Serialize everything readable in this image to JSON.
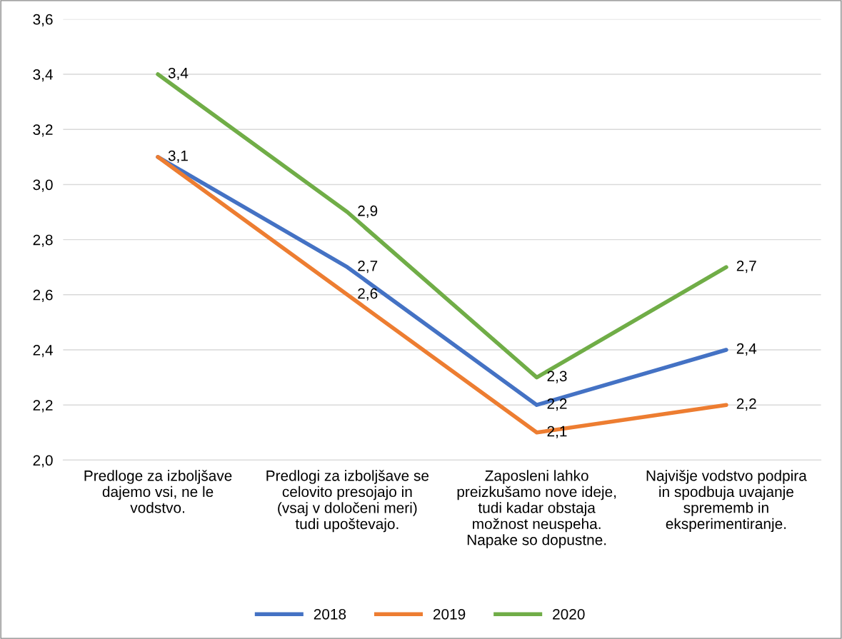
{
  "chart_data": {
    "type": "line",
    "categories": [
      "Predloge za izboljšave\ndajemo vsi, ne le\nvodstvo.",
      "Predlogi za izboljšave se\ncelovito presojajo in\n(vsaj v določeni meri)\ntudi upoštevajo.",
      "Zaposleni lahko\npreizkušamo nove ideje,\ntudi kadar obstaja\nmožnost neuspeha.\nNapake so dopustne.",
      "Najvišje vodstvo podpira\nin spodbuja uvajanje\nsprememb in\neksperimentiranje."
    ],
    "series": [
      {
        "name": "2018",
        "color": "#4472c4",
        "values": [
          3.1,
          2.7,
          2.2,
          2.4
        ],
        "value_labels": [
          "3,1",
          "2,7",
          "2,2",
          "2,4"
        ]
      },
      {
        "name": "2019",
        "color": "#ed7d31",
        "values": [
          3.1,
          2.6,
          2.1,
          2.2
        ],
        "value_labels": [
          null,
          "2,6",
          "2,1",
          "2,2"
        ]
      },
      {
        "name": "2020",
        "color": "#70ad47",
        "values": [
          3.4,
          2.9,
          2.3,
          2.7
        ],
        "value_labels": [
          "3,4",
          "2,9",
          "2,3",
          "2,7"
        ]
      }
    ],
    "ylim": [
      2.0,
      3.6
    ],
    "yticks": [
      {
        "value": 2.0,
        "label": "2,0"
      },
      {
        "value": 2.2,
        "label": "2,2"
      },
      {
        "value": 2.4,
        "label": "2,4"
      },
      {
        "value": 2.6,
        "label": "2,6"
      },
      {
        "value": 2.8,
        "label": "2,8"
      },
      {
        "value": 3.0,
        "label": "3,0"
      },
      {
        "value": 3.2,
        "label": "3,2"
      },
      {
        "value": 3.4,
        "label": "3,4"
      },
      {
        "value": 3.6,
        "label": "3,6"
      }
    ],
    "grid": "y",
    "legend": "bottom",
    "marker": "none",
    "line_style": "solid"
  }
}
